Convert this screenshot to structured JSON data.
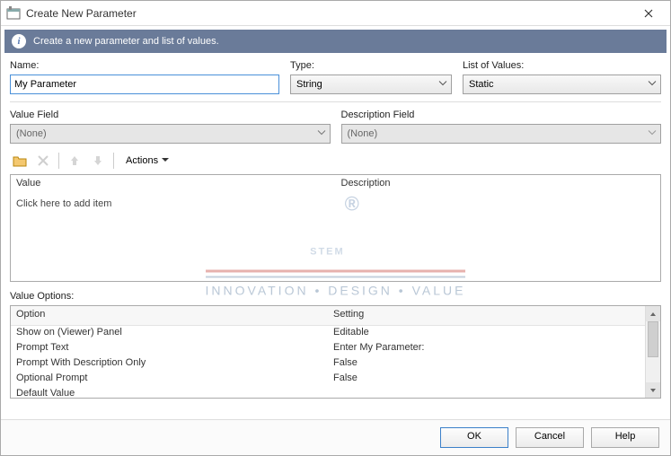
{
  "window": {
    "title": "Create New Parameter",
    "info_text": "Create a new parameter and list of values."
  },
  "fields": {
    "name_label": "Name:",
    "name_value": "My Parameter",
    "type_label": "Type:",
    "type_value": "String",
    "lov_label": "List of Values:",
    "lov_value": "Static",
    "value_field_label": "Value Field",
    "value_field_value": "(None)",
    "desc_field_label": "Description Field",
    "desc_field_value": "(None)"
  },
  "toolbar": {
    "actions_label": "Actions"
  },
  "value_grid": {
    "col_value": "Value",
    "col_desc": "Description",
    "placeholder": "Click here to add item"
  },
  "value_options": {
    "label": "Value Options:",
    "col_option": "Option",
    "col_setting": "Setting",
    "rows": [
      {
        "option": "Show on (Viewer) Panel",
        "setting": "Editable"
      },
      {
        "option": "Prompt Text",
        "setting": "Enter My Parameter:"
      },
      {
        "option": "Prompt With Description Only",
        "setting": "False"
      },
      {
        "option": "Optional Prompt",
        "setting": "False"
      },
      {
        "option": "Default Value",
        "setting": ""
      }
    ]
  },
  "buttons": {
    "ok": "OK",
    "cancel": "Cancel",
    "help": "Help"
  },
  "watermark": {
    "main": "STEM",
    "sub": "INNOVATION  •  DESIGN  •  VALUE"
  }
}
